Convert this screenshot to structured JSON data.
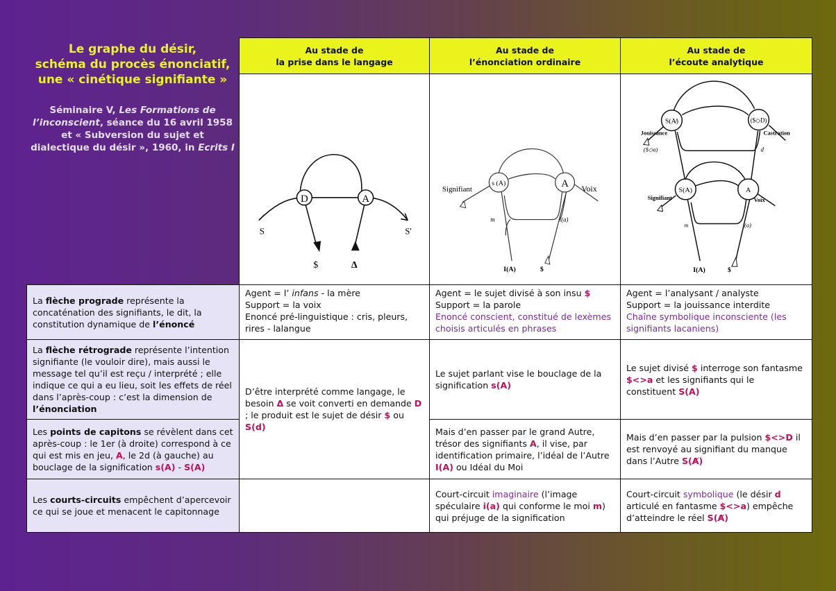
{
  "title": {
    "lines": [
      "Le graphe du désir,",
      "schéma du procès énonciatif,",
      "une «  cinétique signifiante  »"
    ]
  },
  "subtitle": {
    "segs": [
      {
        "t": "Séminaire V, "
      },
      {
        "t": "Les Formations de l’inconscient",
        "s": "i"
      },
      {
        "t": ", séance du 16 avril 1958 et «  Subversion du sujet et dialectique du désir  », 1960, in "
      },
      {
        "t": "Ecrits I",
        "s": "i"
      }
    ]
  },
  "headers": [
    {
      "l1": "Au stade de",
      "l2": "la prise dans le langage"
    },
    {
      "l1": "Au stade de",
      "l2": "l’énonciation  ordinaire"
    },
    {
      "l1": "Au stade de",
      "l2": "l’écoute  analytique"
    }
  ],
  "diagrams": {
    "d1": {
      "D": "D",
      "A": "A",
      "S": "S",
      "S_prime": "S'",
      "barred_s": "$",
      "delta": "Δ"
    },
    "d2": {
      "sA": "s (A)",
      "A": "A",
      "signifiant": "Signifiant",
      "voix": "Voix",
      "m": "m",
      "ia": "i(a)",
      "IA": "I(A)",
      "barred_s": "$"
    },
    "d3": {
      "SAbar": "S(A̸)",
      "sD": "($◇D)",
      "jouissance": "Jouissance",
      "castration": "Castration",
      "sa": "($◇a)",
      "d": "d",
      "SA": "S(A)",
      "A": "A",
      "signifiant": "Signifiant",
      "voix": "Voix",
      "m": "m",
      "ia": "i(a)",
      "IA": "I(A)",
      "barred_s": "$"
    }
  },
  "rows": [
    {
      "cells": [
        {
          "segs": [
            {
              "t": "La "
            },
            {
              "t": "flèche prograde",
              "s": "b"
            },
            {
              "t": " représente la concaténation des signifiants, le dit, la constitution dynamique de "
            },
            {
              "t": "l’énoncé",
              "s": "b"
            }
          ]
        },
        {
          "segs": [
            {
              "t": "Agent = l’ "
            },
            {
              "t": "infans",
              "s": "i"
            },
            {
              "t": " - la mère"
            },
            {
              "br": true
            },
            {
              "t": "Support = la voix"
            },
            {
              "br": true
            },
            {
              "t": "Enoncé pré-linguistique : cris, pleurs, rires - lalangue"
            }
          ]
        },
        {
          "segs": [
            {
              "t": "Agent = le sujet divisé à son insu "
            },
            {
              "t": "$",
              "s": "r"
            },
            {
              "br": true
            },
            {
              "t": "Support = la parole"
            },
            {
              "br": true
            },
            {
              "t": "Enoncé conscient, constitué de lexèmes choisis articulés en phrases",
              "s": "p"
            }
          ]
        },
        {
          "segs": [
            {
              "t": "Agent = l’analysant / analyste"
            },
            {
              "br": true
            },
            {
              "t": "Support = la jouissance interdite"
            },
            {
              "br": true
            },
            {
              "t": "Chaîne symbolique inconsciente (les signifiants lacaniens)",
              "s": "p"
            }
          ]
        }
      ]
    },
    {
      "cells": [
        {
          "segs": [
            {
              "t": "La "
            },
            {
              "t": "flèche rétrograde",
              "s": "b"
            },
            {
              "t": " représente l’intention signifiante (le vouloir dire), mais aussi le message tel qu’il est reçu / interprété  ; elle indique ce qui a eu lieu, soit les effets de réel dans l’après-coup  : c’est la dimension de "
            },
            {
              "t": "l’énonciation",
              "s": "b"
            }
          ]
        },
        {
          "segs": [
            {
              "t": "D’être interprété comme langage, le besoin "
            },
            {
              "t": "Δ",
              "s": "r"
            },
            {
              "t": " se voit converti en demande "
            },
            {
              "t": "D",
              "s": "r"
            },
            {
              "t": " ; le produit est le sujet de désir "
            },
            {
              "t": "$",
              "s": "r"
            },
            {
              "t": " ou "
            },
            {
              "t": "S(d)",
              "s": "r"
            }
          ]
        },
        {
          "segs": [
            {
              "t": "Le sujet parlant vise le bouclage de la signification "
            },
            {
              "t": "s(A)",
              "s": "r"
            }
          ]
        },
        {
          "segs": [
            {
              "t": "Le sujet divisé "
            },
            {
              "t": "$",
              "s": "r"
            },
            {
              "t": " interroge son fantasme "
            },
            {
              "t": "$<>a",
              "s": "r"
            },
            {
              "t": " et les signifiants qui le constituent "
            },
            {
              "t": "S(A)",
              "s": "r"
            }
          ]
        }
      ]
    },
    {
      "cells": [
        {
          "segs": [
            {
              "t": "Les "
            },
            {
              "t": "points de capitons",
              "s": "b"
            },
            {
              "t": " se révèlent dans cet après-coup  : le 1er (à droite) correspond à ce qui est mis en jeu, "
            },
            {
              "t": "A",
              "s": "r"
            },
            {
              "t": ", le 2d (à gauche) au bouclage de la signification "
            },
            {
              "t": "s(A)",
              "s": "r"
            },
            {
              "t": " - "
            },
            {
              "t": "S(A)",
              "s": "r"
            }
          ]
        },
        {
          "segs": [
            {
              "t": "Mais d’en passer par le grand Autre, trésor des signifiants "
            },
            {
              "t": "A",
              "s": "r"
            },
            {
              "t": ", il vise, par identification primaire, l’idéal de l’Autre "
            },
            {
              "t": "I(A)",
              "s": "r"
            },
            {
              "t": " ou Idéal du Moi"
            }
          ]
        },
        {
          "segs": [
            {
              "t": "Mais d’en passer par la pulsion "
            },
            {
              "t": "$<>D",
              "s": "r"
            },
            {
              "t": " il est renvoyé au signifiant du manque dans l’Autre "
            },
            {
              "t": "S(A̸)",
              "s": "r"
            }
          ]
        }
      ]
    },
    {
      "cells": [
        {
          "segs": [
            {
              "t": "Les "
            },
            {
              "t": "courts-circuits",
              "s": "b"
            },
            {
              "t": " empêchent d’apercevoir ce qui se joue et menacent le capitonnage"
            }
          ]
        },
        {
          "segs": []
        },
        {
          "segs": [
            {
              "t": "Court-circuit "
            },
            {
              "t": "imaginaire",
              "s": "p"
            },
            {
              "t": " (l’image spéculaire "
            },
            {
              "t": "i(a)",
              "s": "r"
            },
            {
              "t": " qui conforme le moi "
            },
            {
              "t": "m",
              "s": "r"
            },
            {
              "t": ") qui préjuge de la signification"
            }
          ]
        },
        {
          "segs": [
            {
              "t": "Court-circuit "
            },
            {
              "t": "symbolique",
              "s": "p"
            },
            {
              "t": " (le désir "
            },
            {
              "t": "d",
              "s": "r"
            },
            {
              "t": " articulé en fantasme "
            },
            {
              "t": "$<>a",
              "s": "r"
            },
            {
              "t": ") empêche d’atteindre le réel "
            },
            {
              "t": "S(A̸)",
              "s": "r"
            }
          ]
        }
      ]
    }
  ]
}
